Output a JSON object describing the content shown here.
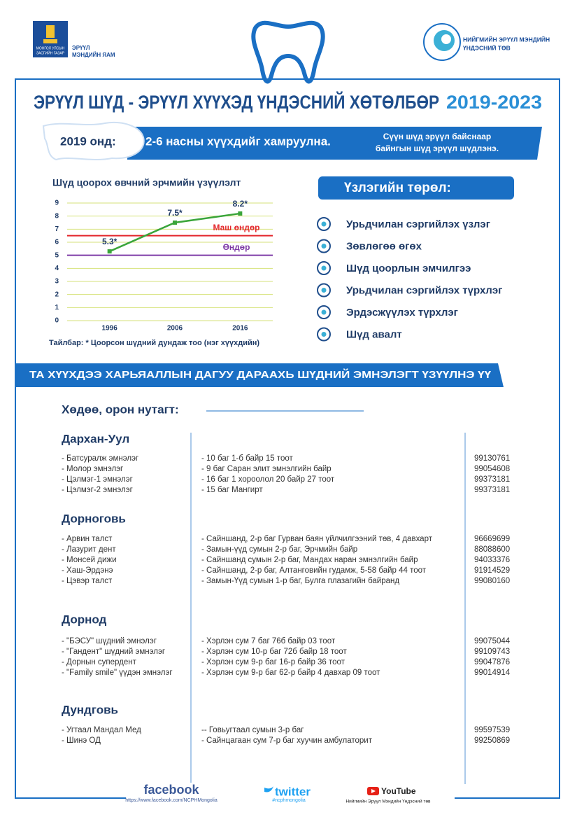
{
  "header": {
    "ministry_lines": [
      "ЭРҮҮЛ",
      "МЭНДИЙН ЯАМ"
    ],
    "emblem_lines": [
      "МОНГОЛ УЛСЫН",
      "ЗАСГИЙН ГАЗАР"
    ],
    "center_lines": [
      "НИЙГМИЙН ЭРҮҮЛ МЭНДИЙН",
      "ҮНДЭСНИЙ ТӨВ"
    ],
    "title": "ЭРҮҮЛ ШҮД - ЭРҮҮЛ ХҮҮХЭД ҮНДЭСНИЙ ХӨТӨЛБӨР",
    "years": "2019-2023"
  },
  "banner": {
    "year_label": "2019 онд:",
    "coverage": "2-6 насны хүүхдийг хамруулна.",
    "note_lines": [
      "Сүүн шүд эрүүл байснаар",
      "байнгын шүд эрүүл шүдлэнэ."
    ]
  },
  "chart_data": {
    "type": "line",
    "title": "Шүд цоорох өвчний эрчмийн үзүүлэлт",
    "categories": [
      "1996",
      "2006",
      "2016"
    ],
    "values": [
      5.3,
      7.5,
      8.2
    ],
    "value_labels": [
      "5.3*",
      "7.5*",
      "8.2*"
    ],
    "color": "#3aa53a",
    "ylim": [
      0,
      9
    ],
    "yticks": [
      0,
      1,
      2,
      3,
      4,
      5,
      6,
      7,
      8,
      9
    ],
    "grid": true,
    "grid_color": "#d6e27a",
    "reference_lines": [
      {
        "label": "Маш өндөр",
        "value": 6.5,
        "color": "#e3262b"
      },
      {
        "label": "Өндөр",
        "value": 5,
        "color": "#7d3aa6"
      }
    ],
    "footnote": "Тайлбар: * Цоорсон шүдний дундаж тоо (нэг хүүхдийн)"
  },
  "exams": {
    "title": "Үзлэгийн төрөл:",
    "items": [
      "Урьдчилан сэргийлэх үзлэг",
      "Зөвлөгөө өгөх",
      "Шүд цоорлын эмчилгээ",
      "Урьдчилан сэргийлэх түрхлэг",
      "Эрдэсжүүлэх түрхлэг",
      "Шүд авалт"
    ]
  },
  "clinics": {
    "title": "ТА ХҮҮХДЭЭ ХАРЬЯАЛЛЫН ДАГУУ ДАРААХЬ ШҮДНИЙ ЭМНЭЛЭГТ ҮЗҮҮЛНЭ ҮҮ",
    "subtitle": "Хөдөө, орон нутагт:",
    "regions": [
      {
        "name": "Дархан-Уул",
        "rows": [
          [
            "- Батсуралж эмнэлэг",
            "- 10 баг 1-б байр 15 тоот",
            "99130761"
          ],
          [
            "- Молор эмнэлэг",
            "- 9 баг Саран элит эмнэлгийн байр",
            "99054608"
          ],
          [
            "- Цэлмэг-1 эмнэлэг",
            "- 16 баг 1 хороолол 20 байр 27 тоот",
            "99373181"
          ],
          [
            "- Цэлмэг-2 эмнэлэг",
            "- 15 баг Мангирт",
            "99373181"
          ]
        ]
      },
      {
        "name": "Дорноговь",
        "rows": [
          [
            "- Арвин талст",
            "- Сайншанд, 2-р баг Гурван баян үйлчилгээний төв, 4 давхарт",
            "96669699"
          ],
          [
            "- Лазурит дент",
            "- Замын-үүд сумын 2-р баг, Эрчмийн байр",
            "88088600"
          ],
          [
            "- Монсей дижи",
            "- Сайншанд сумын 2-р баг, Мандах наран эмнэлгийн байр",
            "94033376"
          ],
          [
            "- Хаш-Эрдэнэ",
            "- Сайншанд, 2-р баг, Алтанговийн гудамж, 5-58 байр 44 тоот",
            "91914529"
          ],
          [
            "- Цэвэр талст",
            "- Замын-Үүд сумын 1-р баг, Булга плазагийн байранд",
            "99080160"
          ]
        ]
      },
      {
        "name": "Дорнод",
        "rows": [
          [
            "- \"БЭСУ\" шүдний эмнэлэг",
            "- Хэрлэн сум 7 баг 76б байр 03 тоот",
            "99075044"
          ],
          [
            "- \"Гандент\" шүдний эмнэлэг",
            "- Хэрлэн сум 10-р баг 72б байр 18 тоот",
            "99109743"
          ],
          [
            "- Дорнын супердент",
            "- Хэрлэн сум 9-р баг 16-р байр 36 тоот",
            "99047876"
          ],
          [
            "- \"Family smile\" үүдэн эмнэлэг",
            "- Хэрлэн сум 9-р баг 62-р байр 4 давхар 09 тоот",
            "99014914"
          ]
        ]
      },
      {
        "name": "Дундговь",
        "rows": [
          [
            "- Угтаал Мандал Мед",
            "-- Говьугтаал сумын 3-р баг",
            "99597539"
          ],
          [
            "- Шинэ ОД",
            "- Сайнцагаан сум 7-р баг хуучин амбулаторит",
            "99250869"
          ]
        ]
      }
    ]
  },
  "footer": {
    "facebook": "facebook",
    "facebook_url": "https://www.facebook.com/NCPHMongolia",
    "twitter": "twitter",
    "twitter_handle": "#ncphmongolia",
    "youtube": "YouTube",
    "youtube_caption": "Нийгмийн Эрүүл Мэндийн Үндэсний төв"
  }
}
